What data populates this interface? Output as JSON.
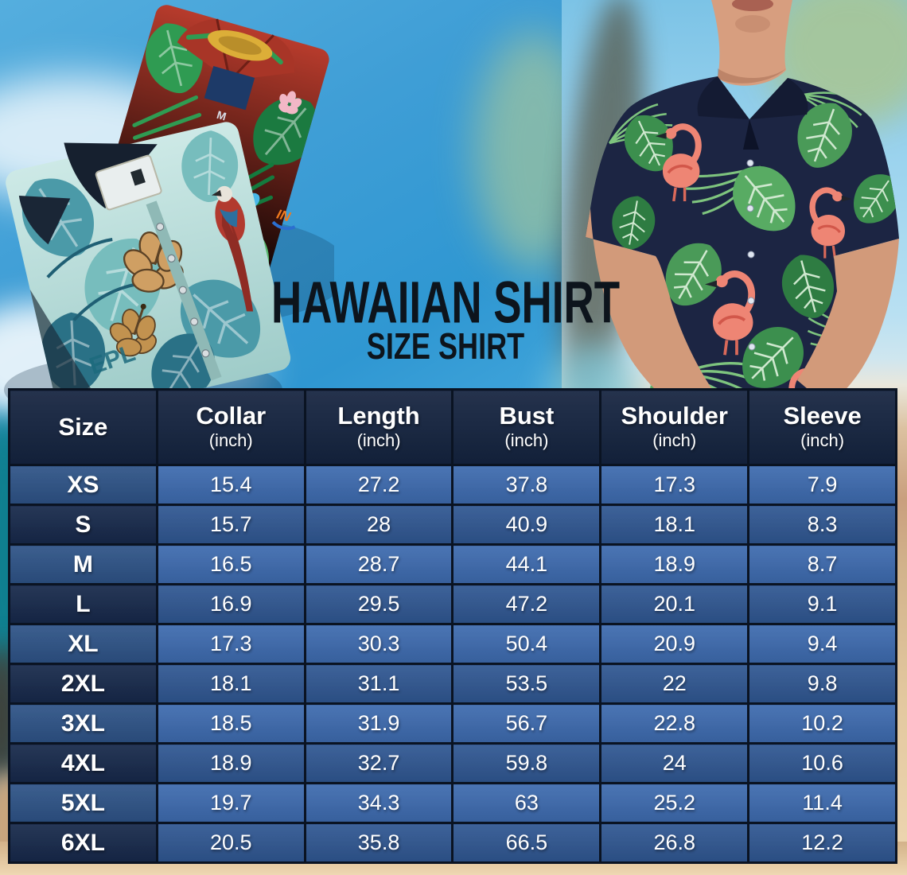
{
  "title": {
    "main": "HAWAIIAN SHIRT",
    "sub": "SIZE SHIRT"
  },
  "photos": {
    "red_shirt_tag_letter": "M",
    "teal_shirt_print_text": "EPL",
    "red_shirt_sleeve_logo": "IN"
  },
  "chart_data": {
    "type": "table",
    "title": "HAWAIIAN SHIRT",
    "subtitle": "SIZE SHIRT",
    "unit_note": "all measurements in inches",
    "columns": [
      {
        "label": "Size",
        "unit": ""
      },
      {
        "label": "Collar",
        "unit": "(inch)"
      },
      {
        "label": "Length",
        "unit": "(inch)"
      },
      {
        "label": "Bust",
        "unit": "(inch)"
      },
      {
        "label": "Shoulder",
        "unit": "(inch)"
      },
      {
        "label": "Sleeve",
        "unit": "(inch)"
      }
    ],
    "rows": [
      {
        "size": "XS",
        "values": [
          15.4,
          27.2,
          37.8,
          17.3,
          7.9
        ]
      },
      {
        "size": "S",
        "values": [
          15.7,
          28,
          40.9,
          18.1,
          8.3
        ]
      },
      {
        "size": "M",
        "values": [
          16.5,
          28.7,
          44.1,
          18.9,
          8.7
        ]
      },
      {
        "size": "L",
        "values": [
          16.9,
          29.5,
          47.2,
          20.1,
          9.1
        ]
      },
      {
        "size": "XL",
        "values": [
          17.3,
          30.3,
          50.4,
          20.9,
          9.4
        ]
      },
      {
        "size": "2XL",
        "values": [
          18.1,
          31.1,
          53.5,
          22,
          9.8
        ]
      },
      {
        "size": "3XL",
        "values": [
          18.5,
          31.9,
          56.7,
          22.8,
          10.2
        ]
      },
      {
        "size": "4XL",
        "values": [
          18.9,
          32.7,
          59.8,
          24,
          10.6
        ]
      },
      {
        "size": "5XL",
        "values": [
          19.7,
          34.3,
          63,
          25.2,
          11.4
        ]
      },
      {
        "size": "6XL",
        "values": [
          20.5,
          35.8,
          66.5,
          26.8,
          12.2
        ]
      }
    ]
  },
  "colors": {
    "sky_blue": "#4fa9dc",
    "sand": "#e9cfa6",
    "title_text": "#0d141c",
    "table_border": "#0a1322",
    "header_bg": "#14233f",
    "row_light_label_bg": "#2d5286",
    "row_light_value_bg": "#3d6aae",
    "row_dark_label_bg": "#16284a",
    "row_dark_value_bg": "#2f5691",
    "cell_text": "#ffffff",
    "shirt_navy": "#1c2543",
    "leaf_green": "#4a9a58",
    "flamingo_pink": "#ee8574"
  }
}
